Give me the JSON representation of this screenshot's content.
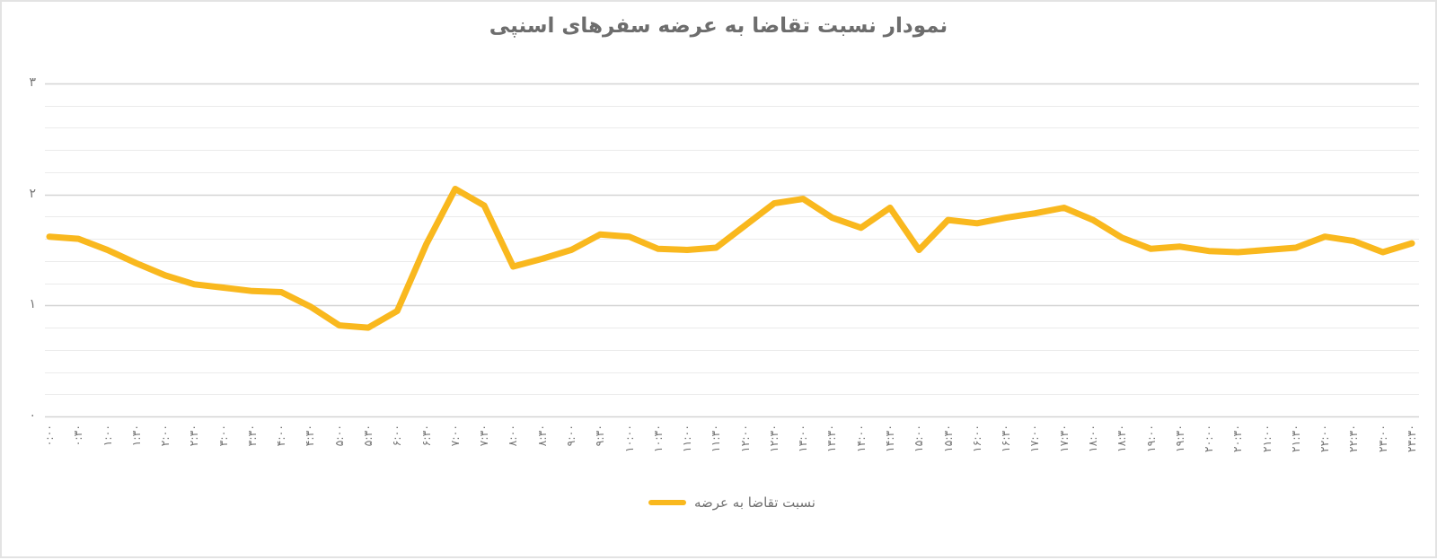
{
  "title": "نمودار نسبت تقاضا به عرضه سفرهای اسنپی",
  "legend": {
    "label": "نسبت تقاضا به عرضه"
  },
  "colors": {
    "line": "#f9b81e",
    "grid_minor": "#ebebeb",
    "grid_major": "#d4d4d4",
    "axis_text": "#757575",
    "title_text": "#6d6d6d",
    "card_border": "#e3e3e3",
    "background": "#ffffff"
  },
  "y_axis": {
    "tick_labels_top_to_bottom": [
      "۳",
      "۲",
      "۱",
      "۰"
    ],
    "tick_values_top_to_bottom": [
      3,
      2,
      1,
      0
    ],
    "minor_step": 0.2
  },
  "chart_data": {
    "type": "line",
    "title": "نمودار نسبت تقاضا به عرضه سفرهای اسنپی",
    "xlabel": "",
    "ylabel": "",
    "ylim": [
      0,
      3
    ],
    "grid": true,
    "legend_position": "bottom",
    "x_labels_rotation_deg": -90,
    "categories": [
      "۰:۰۰",
      "۰:۳۰",
      "۱:۰۰",
      "۱:۳۰",
      "۲:۰۰",
      "۲:۳۰",
      "۳:۰۰",
      "۳:۳۰",
      "۴:۰۰",
      "۴:۳۰",
      "۵:۰۰",
      "۵:۳۰",
      "۶:۰۰",
      "۶:۳۰",
      "۷:۰۰",
      "۷:۳۰",
      "۸:۰۰",
      "۸:۳۰",
      "۹:۰۰",
      "۹:۳۰",
      "۱۰:۰۰",
      "۱۰:۳۰",
      "۱۱:۰۰",
      "۱۱:۳۰",
      "۱۲:۰۰",
      "۱۲:۳۰",
      "۱۳:۰۰",
      "۱۳:۳۰",
      "۱۴:۰۰",
      "۱۴:۳۰",
      "۱۵:۰۰",
      "۱۵:۳۰",
      "۱۶:۰۰",
      "۱۶:۳۰",
      "۱۷:۰۰",
      "۱۷:۳۰",
      "۱۸:۰۰",
      "۱۸:۳۰",
      "۱۹:۰۰",
      "۱۹:۳۰",
      "۲۰:۰۰",
      "۲۰:۳۰",
      "۲۱:۰۰",
      "۲۱:۳۰",
      "۲۲:۰۰",
      "۲۲:۳۰",
      "۲۳:۰۰",
      "۲۳:۳۰"
    ],
    "series": [
      {
        "name": "نسبت تقاضا به عرضه",
        "values": [
          1.62,
          1.6,
          1.5,
          1.38,
          1.27,
          1.19,
          1.16,
          1.13,
          1.12,
          0.99,
          0.82,
          0.8,
          0.95,
          1.55,
          2.05,
          1.9,
          1.35,
          1.42,
          1.5,
          1.64,
          1.62,
          1.51,
          1.5,
          1.52,
          1.72,
          1.92,
          1.96,
          1.79,
          1.7,
          1.88,
          1.5,
          1.77,
          1.74,
          1.79,
          1.83,
          1.88,
          1.77,
          1.61,
          1.51,
          1.53,
          1.49,
          1.48,
          1.5,
          1.52,
          1.62,
          1.58,
          1.48,
          1.56
        ]
      }
    ]
  }
}
